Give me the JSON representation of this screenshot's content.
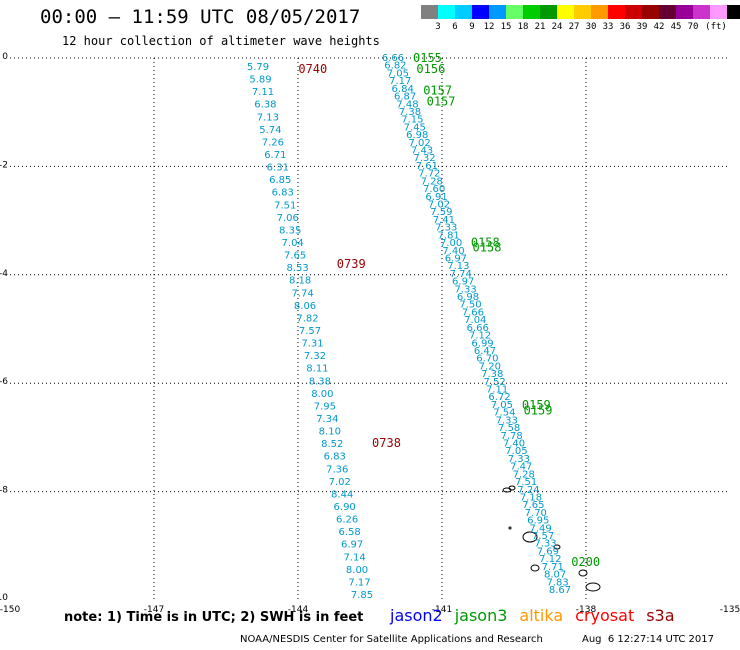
{
  "title": "00:00 – 11:59 UTC 08/05/2017",
  "subtitle": "12 hour collection of altimeter wave heights",
  "colorbar": {
    "colors": [
      "#808080",
      "#00ffff",
      "#00ccff",
      "#0000ff",
      "#0099ff",
      "#66ff66",
      "#00cc00",
      "#009900",
      "#ffff00",
      "#ffcc00",
      "#ff9900",
      "#ff0000",
      "#cc0000",
      "#990000",
      "#660033",
      "#990099",
      "#cc33cc",
      "#ff99ff",
      "#000000"
    ],
    "labels": [
      "3",
      "6",
      "9",
      "12",
      "15",
      "18",
      "21",
      "24",
      "27",
      "30",
      "33",
      "36",
      "39",
      "42",
      "45",
      "70",
      "(ft)"
    ]
  },
  "axes": {
    "x_labels": [
      "-150",
      "-147",
      "-144",
      "-141",
      "-138",
      "-135"
    ],
    "y_labels": [
      "0",
      "-2",
      "-4",
      "-6",
      "-8",
      "-10"
    ],
    "x_range": [
      -150,
      -135
    ],
    "y_range": [
      -10,
      0
    ]
  },
  "tracks": {
    "cryosat": {
      "color": "#0099cc",
      "values": [
        "5.79",
        "5.89",
        "7.11",
        "6.38",
        "7.13",
        "5.74",
        "7.26",
        "6.71",
        "6.31",
        "6.85",
        "6.83",
        "7.51",
        "7.06",
        "8.35",
        "7.04",
        "7.65",
        "8.53",
        "8.18",
        "7.74",
        "8.06",
        "7.82",
        "7.57",
        "7.31",
        "7.32",
        "8.11",
        "8.38",
        "8.00",
        "7.95",
        "7.34",
        "8.10",
        "8.52",
        "6.83",
        "7.36",
        "7.02",
        "8.44",
        "6.90",
        "6.26",
        "6.58",
        "6.97",
        "7.14",
        "8.00",
        "7.17",
        "7.85"
      ],
      "times": [
        {
          "label": "0740",
          "lat": -0.2
        },
        {
          "label": "0739",
          "lat": -3.8
        },
        {
          "label": "0738",
          "lat": -7.1
        }
      ]
    },
    "jason3": {
      "color": "#0099cc",
      "values": [
        "6.66",
        "6.82",
        "7.05",
        "7.17",
        "6.84",
        "6.87",
        "7.48",
        "7.38",
        "7.15",
        "7.45",
        "6.98",
        "7.02",
        "7.43",
        "7.32",
        "7.61",
        "7.72",
        "7.28",
        "7.60",
        "6.91",
        "7.02",
        "7.59",
        "7.41",
        "7.33",
        "7.81",
        "7.00",
        "7.40",
        "6.97",
        "7.13",
        "7.74",
        "6.97",
        "7.33",
        "6.98",
        "7.50",
        "7.66",
        "7.04",
        "6.66",
        "7.12",
        "6.99",
        "6.47",
        "6.70",
        "7.20",
        "7.38",
        "7.52",
        "7.11",
        "6.72",
        "7.05",
        "7.54",
        "7.33",
        "7.58",
        "7.78",
        "7.40",
        "7.05",
        "7.33",
        "7.47",
        "7.28",
        "7.51",
        "7.24",
        "7.18",
        "7.65",
        "7.70",
        "6.95",
        "7.49",
        "7.57",
        "7.33",
        "7.69",
        "7.12",
        "7.71",
        "8.07",
        "7.83",
        "8.67"
      ],
      "times": [
        {
          "label": "0155",
          "lat": 0.0
        },
        {
          "label": "0156",
          "lat": -0.2
        },
        {
          "label": "0157",
          "lat": -0.6
        },
        {
          "label": "0157",
          "lat": -0.8
        },
        {
          "label": "0158",
          "lat": -3.4
        },
        {
          "label": "0158",
          "lat": -3.5
        },
        {
          "label": "0159",
          "lat": -6.4
        },
        {
          "label": "0159",
          "lat": -6.5
        },
        {
          "label": "0200",
          "lat": -9.3
        }
      ]
    }
  },
  "note": "note: 1) Time is in UTC; 2) SWH is in feet",
  "legend": [
    {
      "name": "jason2",
      "color": "#0000ff"
    },
    {
      "name": "jason3",
      "color": "#009900"
    },
    {
      "name": "altika",
      "color": "#ff9900"
    },
    {
      "name": "cryosat",
      "color": "#ff0000"
    },
    {
      "name": "s3a",
      "color": "#990000"
    }
  ],
  "credit": "NOAA/NESDIS Center for Satellite Applications and Research",
  "timestamp": "Aug  6 12:27:14 UTC 2017"
}
